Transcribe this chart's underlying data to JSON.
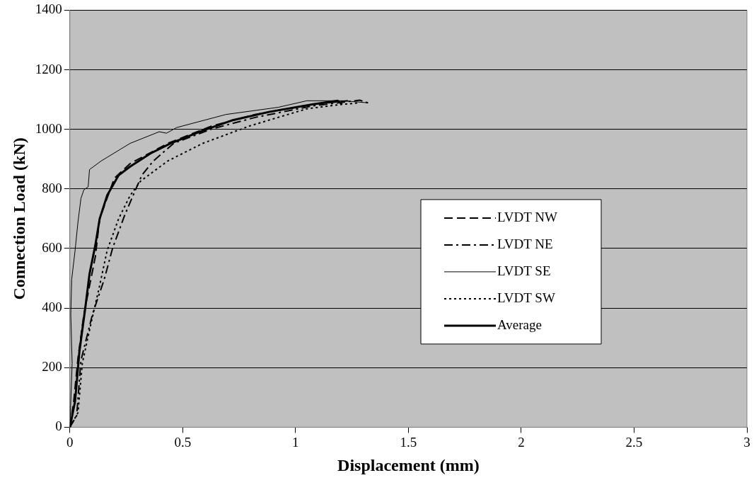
{
  "chart_data": {
    "type": "line",
    "xlabel": "Displacement (mm)",
    "ylabel": "Connection Load (kN)",
    "xlim": [
      0,
      3
    ],
    "xticks": [
      0,
      0.5,
      1,
      1.5,
      2,
      2.5,
      3
    ],
    "ylim": [
      0,
      1400
    ],
    "yticks": [
      0,
      200,
      400,
      600,
      800,
      1000,
      1200,
      1400
    ],
    "grid": "y",
    "legend": "right",
    "marker": "none",
    "series": [
      {
        "name": "LVDT NW",
        "color": "#000000",
        "line_style": "dashed",
        "x": [
          0,
          0.017,
          0.036,
          0.062,
          0.113,
          0.132,
          0.197,
          0.267,
          0.434,
          0.627,
          0.821,
          1.078,
          1.232
        ],
        "values": [
          0,
          87,
          233,
          379,
          573,
          700,
          836,
          885,
          953,
          1011,
          1050,
          1084,
          1096
        ]
      },
      {
        "name": "LVDT NE",
        "color": "#000000",
        "line_style": "dashdot",
        "x": [
          0,
          0.03,
          0.049,
          0.1,
          0.152,
          0.19,
          0.242,
          0.28,
          0.319,
          0.37,
          0.46,
          0.627,
          0.821,
          1.078,
          1.284,
          1.329
        ],
        "values": [
          0,
          39,
          224,
          379,
          496,
          603,
          710,
          778,
          846,
          894,
          953,
          1001,
          1040,
          1079,
          1098,
          1087
        ]
      },
      {
        "name": "LVDT SE",
        "color": "#000000",
        "line_style": "solid",
        "x": [
          0,
          0.01,
          0.004,
          0.008,
          0.023,
          0.036,
          0.049,
          0.062,
          0.081,
          0.087,
          0.139,
          0.267,
          0.396,
          0.428,
          0.473,
          0.692,
          0.923,
          1.05,
          1.206,
          1.322
        ],
        "values": [
          0,
          214,
          379,
          496,
          593,
          690,
          768,
          797,
          807,
          865,
          894,
          953,
          992,
          987,
          1006,
          1050,
          1074,
          1096,
          1096,
          1089
        ]
      },
      {
        "name": "LVDT SW",
        "color": "#000000",
        "line_style": "dotted",
        "x": [
          0,
          0.036,
          0.055,
          0.094,
          0.132,
          0.165,
          0.216,
          0.267,
          0.313,
          0.434,
          0.589,
          0.692,
          0.795,
          1.05,
          1.206,
          1.284
        ],
        "values": [
          0,
          49,
          214,
          350,
          476,
          593,
          700,
          778,
          826,
          894,
          953,
          982,
          1011,
          1069,
          1084,
          1089
        ]
      },
      {
        "name": "Average",
        "color": "#000000",
        "line_style": "solid",
        "x": [
          0,
          0.023,
          0.042,
          0.068,
          0.087,
          0.113,
          0.132,
          0.165,
          0.216,
          0.267,
          0.357,
          0.447,
          0.589,
          0.718,
          0.885,
          1.078,
          1.187,
          1.206
        ],
        "values": [
          0,
          87,
          253,
          399,
          515,
          612,
          700,
          778,
          846,
          875,
          919,
          953,
          996,
          1030,
          1059,
          1084,
          1096,
          1084
        ]
      }
    ]
  }
}
